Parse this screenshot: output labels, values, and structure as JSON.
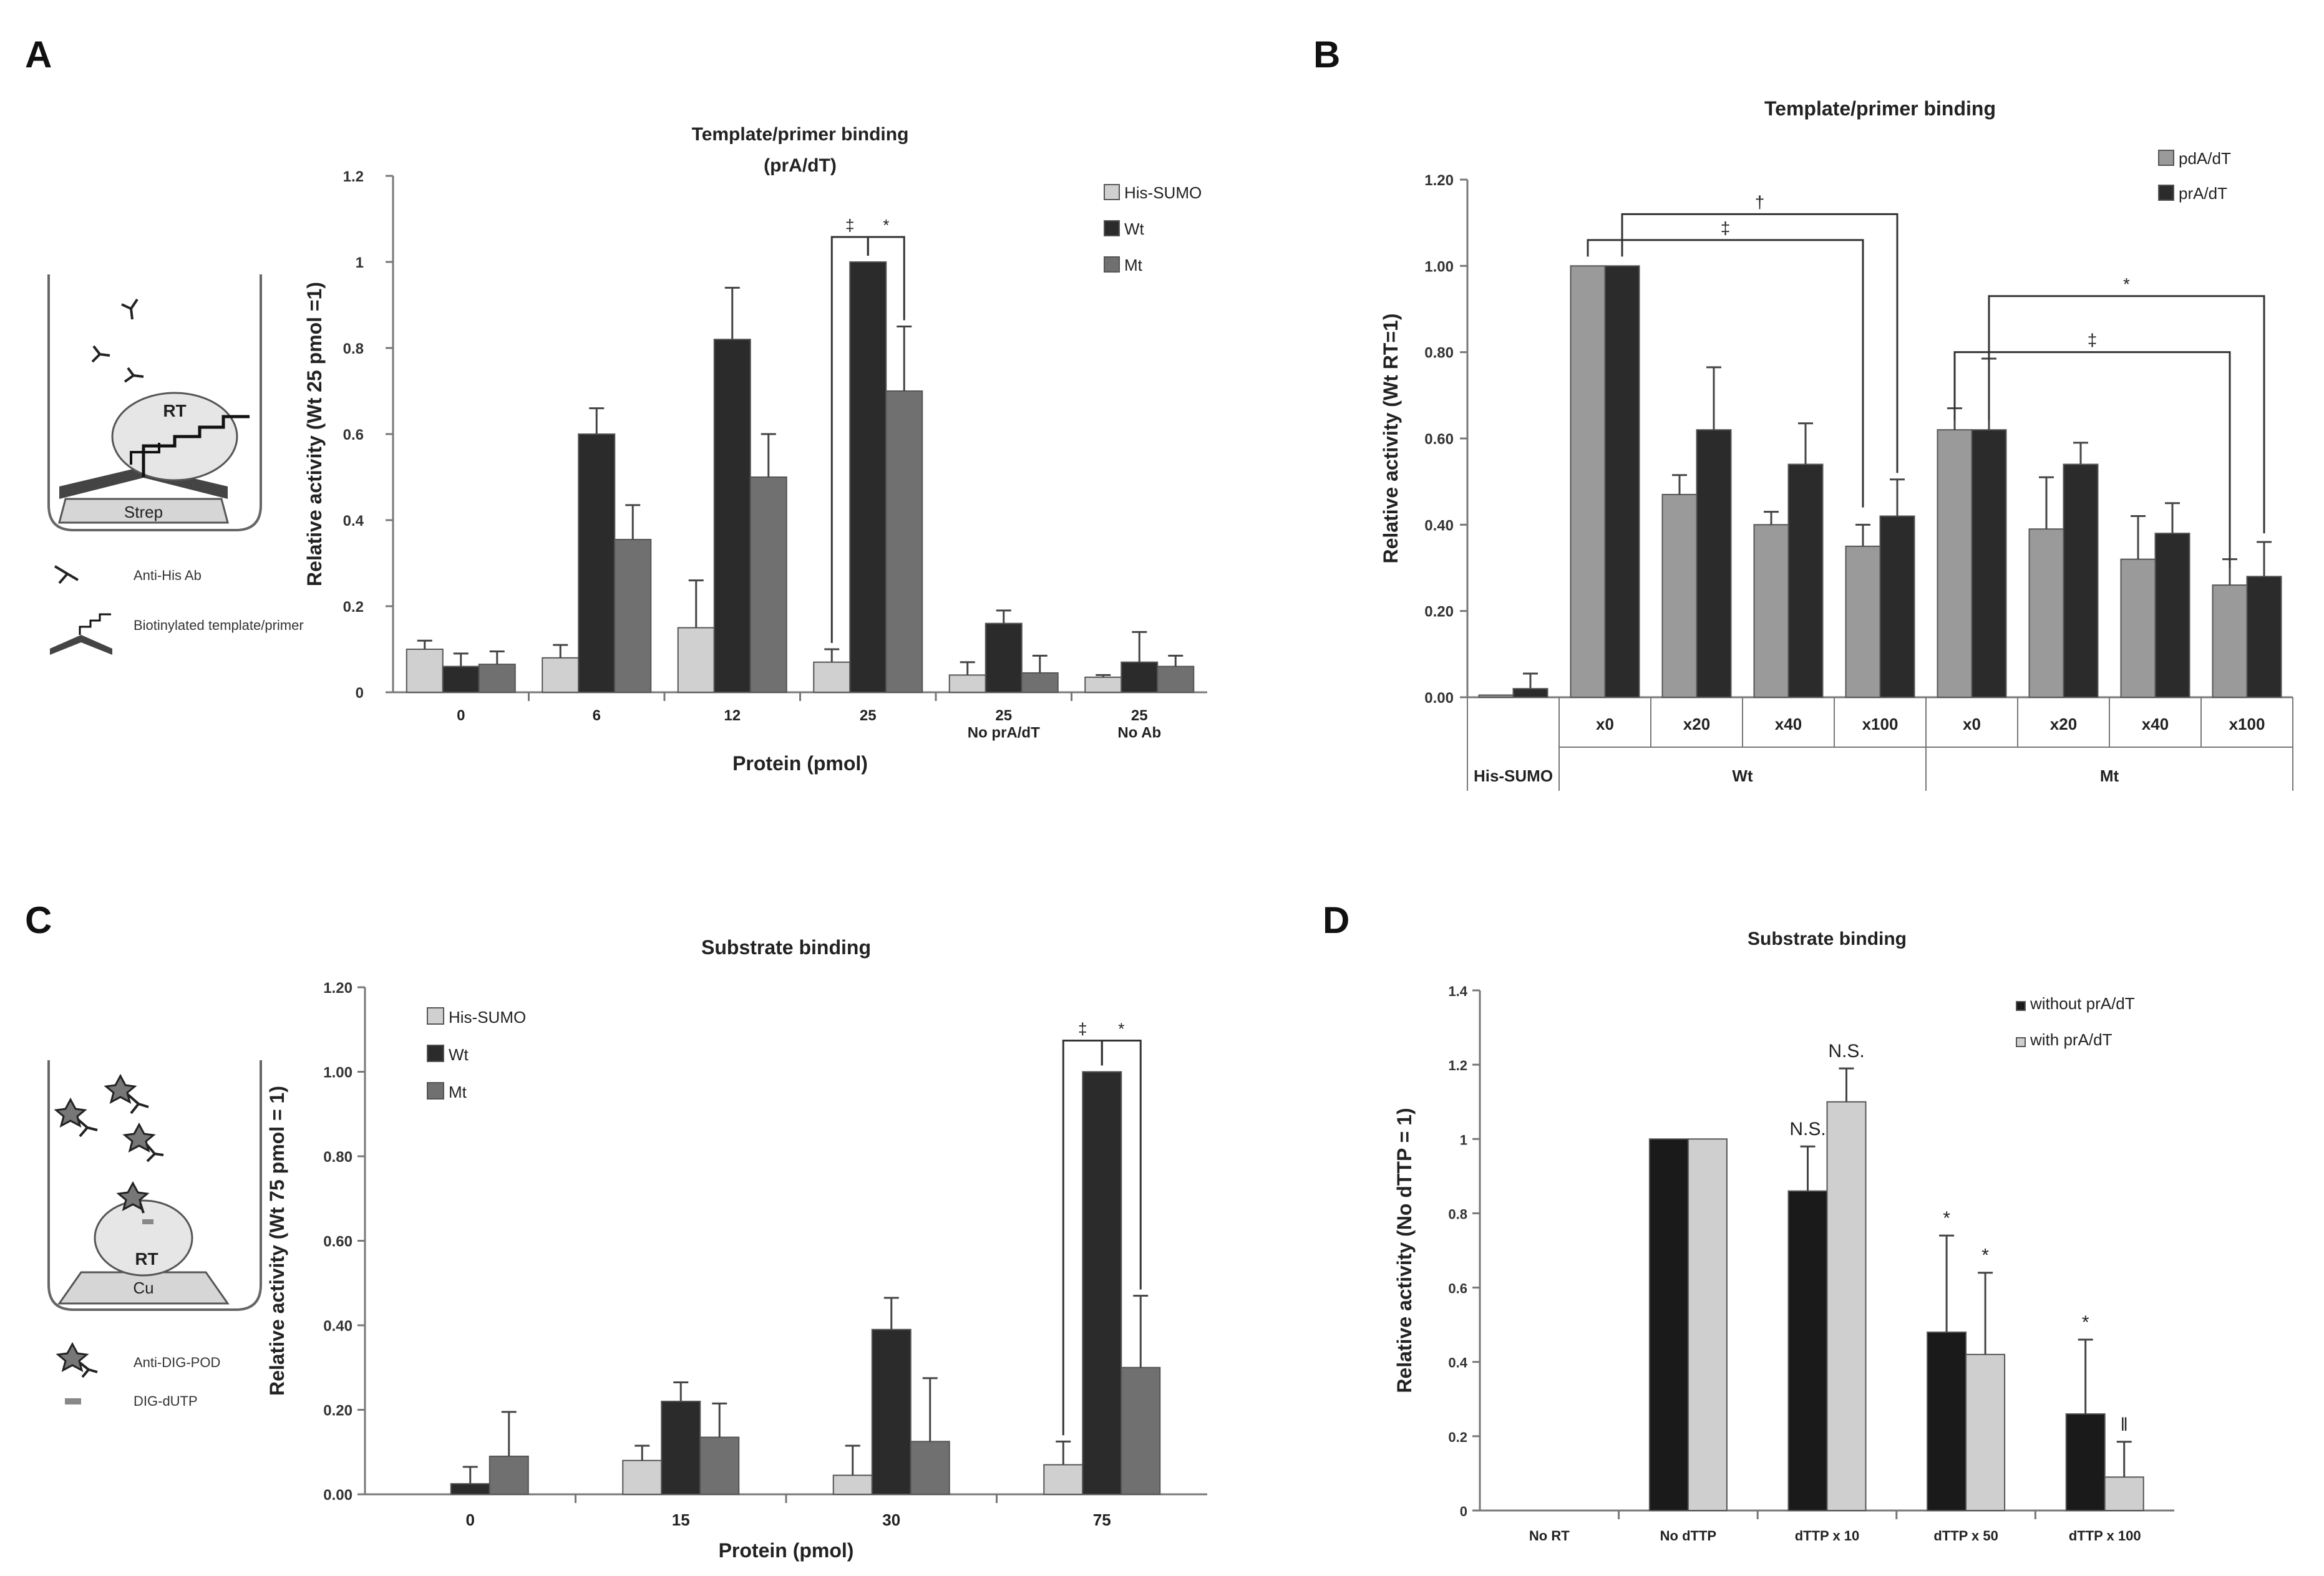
{
  "colors": {
    "light": "#d0d0d0",
    "dark": "#2b2b2b",
    "mid": "#707070",
    "grey": "#9a9a9a",
    "black": "#1a1a1a",
    "lightD": "#cfcfcf",
    "outline": "#555555"
  },
  "panel_labels": [
    "A",
    "B",
    "C",
    "D"
  ],
  "diagram_A": {
    "rt_label": "RT",
    "surface_label": "Strep",
    "legend": [
      "Anti-His Ab",
      "Biotinylated template/primer"
    ]
  },
  "diagram_C": {
    "rt_label": "RT",
    "surface_label": "Cu",
    "legend": [
      "Anti-DIG-POD",
      "DIG-dUTP"
    ]
  },
  "chart_data": [
    {
      "id": "A",
      "type": "bar",
      "title": "Template/primer binding",
      "subtitle": "(prA/dT)",
      "xlabel": "Protein (pmol)",
      "ylabel": "Relative activity (Wt 25 pmol =1)",
      "ylim": [
        0,
        1.2
      ],
      "yticks": [
        "0",
        "0.2",
        "0.4",
        "0.6",
        "0.8",
        "1",
        "1.2"
      ],
      "categories": [
        "0",
        "6",
        "12",
        "25",
        "25\nNo prA/dT",
        "25\nNo Ab"
      ],
      "legend_position": "top-right",
      "series": [
        {
          "name": "His-SUMO",
          "color": "light",
          "values": [
            0.1,
            0.08,
            0.15,
            0.07,
            0.04,
            0.035
          ],
          "errors": [
            0.02,
            0.03,
            0.11,
            0.03,
            0.03,
            0.005
          ]
        },
        {
          "name": "Wt",
          "color": "dark",
          "values": [
            0.06,
            0.6,
            0.82,
            1.0,
            0.16,
            0.07
          ],
          "errors": [
            0.03,
            0.06,
            0.12,
            0.0,
            0.03,
            0.07
          ]
        },
        {
          "name": "Mt",
          "color": "mid",
          "values": [
            0.065,
            0.355,
            0.5,
            0.7,
            0.045,
            0.06
          ],
          "errors": [
            0.03,
            0.08,
            0.1,
            0.15,
            0.04,
            0.025
          ]
        }
      ],
      "annotations": [
        {
          "symbol": "‡",
          "category": 3,
          "from_series": 0,
          "to_series": 1
        },
        {
          "symbol": "*",
          "category": 3,
          "from_series": 1,
          "to_series": 2
        }
      ]
    },
    {
      "id": "B",
      "type": "bar",
      "title": "Template/primer binding",
      "ylabel": "Relative activity  (Wt RT=1)",
      "ylim": [
        0,
        1.2
      ],
      "yticks": [
        "0.00",
        "0.20",
        "0.40",
        "0.60",
        "0.80",
        "1.00",
        "1.20"
      ],
      "categories": [
        "His-SUMO",
        "x0",
        "x20",
        "x40",
        "x100",
        "x0",
        "x20",
        "x40",
        "x100"
      ],
      "groups": [
        {
          "label": "Wt",
          "from": 1,
          "to": 4
        },
        {
          "label": "Mt",
          "from": 5,
          "to": 8
        }
      ],
      "legend_position": "top-right",
      "series": [
        {
          "name": "pdA/dT",
          "color": "grey",
          "values": [
            0.005,
            1.0,
            0.47,
            0.4,
            0.35,
            0.62,
            0.39,
            0.32,
            0.26
          ],
          "errors": [
            0.0,
            0.0,
            0.045,
            0.03,
            0.05,
            0.05,
            0.12,
            0.1,
            0.06
          ]
        },
        {
          "name": "prA/dT",
          "color": "dark",
          "values": [
            0.02,
            1.0,
            0.62,
            0.54,
            0.42,
            0.62,
            0.54,
            0.38,
            0.28
          ],
          "errors": [
            0.035,
            0.0,
            0.145,
            0.095,
            0.085,
            0.165,
            0.05,
            0.07,
            0.08
          ]
        }
      ],
      "annotations": [
        {
          "symbol": "†",
          "from": [
            1,
            1
          ],
          "to": [
            4,
            1
          ]
        },
        {
          "symbol": "‡",
          "from": [
            1,
            0
          ],
          "to": [
            4,
            0
          ]
        },
        {
          "symbol": "*",
          "from": [
            5,
            1
          ],
          "to": [
            8,
            1
          ]
        },
        {
          "symbol": "‡",
          "from": [
            5,
            0
          ],
          "to": [
            8,
            0
          ]
        }
      ]
    },
    {
      "id": "C",
      "type": "bar",
      "title": "Substrate binding",
      "xlabel": "Protein (pmol)",
      "ylabel": "Relative activity (Wt 75 pmol = 1)",
      "ylim": [
        0,
        1.2
      ],
      "yticks": [
        "0.00",
        "0.20",
        "0.40",
        "0.60",
        "0.80",
        "1.00",
        "1.20"
      ],
      "categories": [
        "0",
        "15",
        "30",
        "75"
      ],
      "legend_position": "top-left",
      "series": [
        {
          "name": "His-SUMO",
          "color": "light",
          "values": [
            0.0,
            0.08,
            0.045,
            0.07
          ],
          "errors": [
            0.0,
            0.035,
            0.07,
            0.055
          ]
        },
        {
          "name": "Wt",
          "color": "dark",
          "values": [
            0.025,
            0.22,
            0.39,
            1.0
          ],
          "errors": [
            0.04,
            0.045,
            0.075,
            0.0
          ]
        },
        {
          "name": "Mt",
          "color": "mid",
          "values": [
            0.09,
            0.135,
            0.125,
            0.3
          ],
          "errors": [
            0.105,
            0.08,
            0.15,
            0.17
          ]
        }
      ],
      "annotations": [
        {
          "symbol": "‡",
          "category": 3,
          "from_series": 0,
          "to_series": 1
        },
        {
          "symbol": "*",
          "category": 3,
          "from_series": 1,
          "to_series": 2
        }
      ]
    },
    {
      "id": "D",
      "type": "bar",
      "title": "Substrate binding",
      "ylabel": "Relative activity (No dTTP = 1)",
      "ylim": [
        0,
        1.4
      ],
      "yticks": [
        "0",
        "0.2",
        "0.4",
        "0.6",
        "0.8",
        "1",
        "1.2",
        "1.4"
      ],
      "categories": [
        "No RT",
        "No dTTP",
        "dTTP x 10",
        "dTTP x 50",
        "dTTP x 100"
      ],
      "legend_position": "top-right",
      "series": [
        {
          "name": "without prA/dT",
          "color": "black",
          "values": [
            0.0,
            1.0,
            0.86,
            0.48,
            0.26
          ],
          "errors": [
            0.0,
            0.0,
            0.12,
            0.26,
            0.2
          ],
          "marks": [
            "",
            "",
            "N.S.",
            "*",
            "*"
          ]
        },
        {
          "name": "with prA/dT",
          "color": "lightD",
          "values": [
            0.0,
            1.0,
            1.1,
            0.42,
            0.09
          ],
          "errors": [
            0.0,
            0.0,
            0.09,
            0.22,
            0.095
          ],
          "marks": [
            "",
            "",
            "N.S.",
            "*",
            "‖"
          ]
        }
      ]
    }
  ]
}
